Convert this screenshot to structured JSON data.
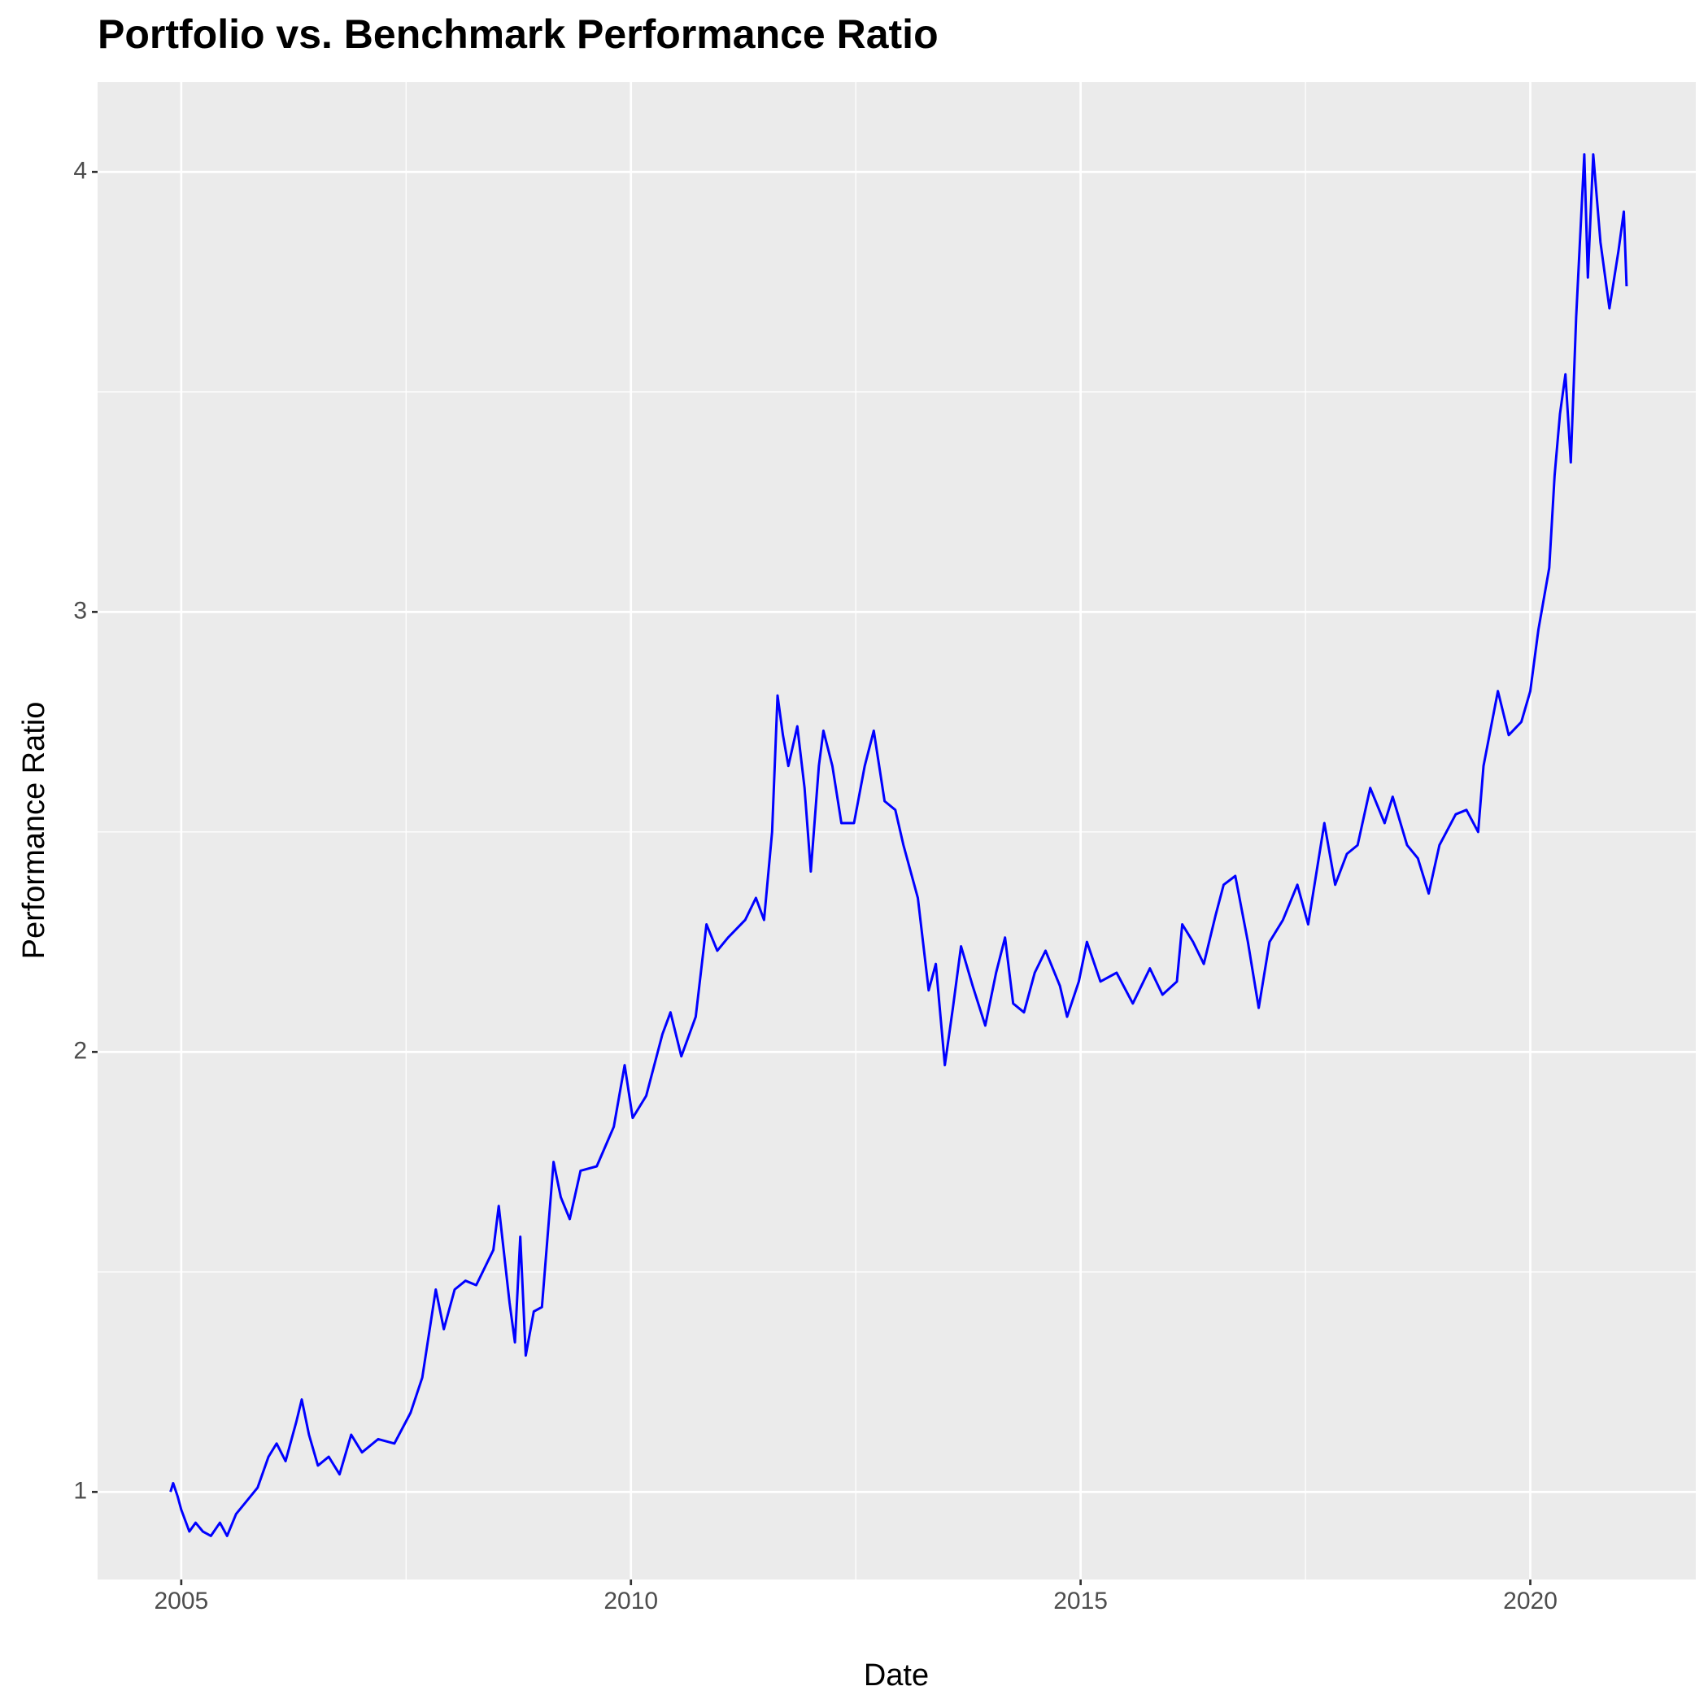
{
  "chart_data": {
    "type": "line",
    "title": "Portfolio vs. Benchmark Performance Ratio",
    "x_label": "Date",
    "y_label": "Performance Ratio",
    "xlim": [
      2004.07,
      2021.84
    ],
    "ylim": [
      0.801,
      4.204
    ],
    "xticks": [
      2005,
      2010,
      2015,
      2020
    ],
    "yticks": [
      1,
      2,
      3,
      4
    ],
    "minor_xticks": [
      2007.5,
      2012.5,
      2017.5
    ],
    "minor_yticks": [
      1.5,
      2.5,
      3.5
    ],
    "grid": true,
    "series": [
      {
        "color": "#0000ff",
        "x": [
          2004.88,
          2004.91,
          2004.96,
          2005.0,
          2005.09,
          2005.16,
          2005.24,
          2005.33,
          2005.43,
          2005.51,
          2005.61,
          2005.73,
          2005.85,
          2005.97,
          2006.06,
          2006.16,
          2006.28,
          2006.34,
          2006.42,
          2006.52,
          2006.64,
          2006.76,
          2006.89,
          2007.01,
          2007.19,
          2007.37,
          2007.55,
          2007.68,
          2007.83,
          2007.92,
          2008.04,
          2008.16,
          2008.28,
          2008.47,
          2008.53,
          2008.65,
          2008.71,
          2008.77,
          2008.83,
          2008.92,
          2009.01,
          2009.14,
          2009.22,
          2009.32,
          2009.44,
          2009.62,
          2009.81,
          2009.93,
          2010.02,
          2010.17,
          2010.35,
          2010.44,
          2010.56,
          2010.72,
          2010.84,
          2010.96,
          2011.08,
          2011.27,
          2011.39,
          2011.48,
          2011.57,
          2011.63,
          2011.69,
          2011.75,
          2011.85,
          2011.93,
          2012.0,
          2012.09,
          2012.14,
          2012.24,
          2012.34,
          2012.48,
          2012.6,
          2012.7,
          2012.82,
          2012.94,
          2013.03,
          2013.19,
          2013.31,
          2013.39,
          2013.49,
          2013.58,
          2013.67,
          2013.8,
          2013.94,
          2014.06,
          2014.16,
          2014.25,
          2014.37,
          2014.49,
          2014.61,
          2014.77,
          2014.85,
          2014.98,
          2015.07,
          2015.22,
          2015.4,
          2015.58,
          2015.77,
          2015.91,
          2016.07,
          2016.13,
          2016.25,
          2016.37,
          2016.5,
          2016.59,
          2016.72,
          2016.86,
          2016.98,
          2017.1,
          2017.25,
          2017.41,
          2017.53,
          2017.71,
          2017.83,
          2017.96,
          2018.08,
          2018.22,
          2018.38,
          2018.47,
          2018.63,
          2018.75,
          2018.87,
          2018.99,
          2019.17,
          2019.29,
          2019.42,
          2019.48,
          2019.64,
          2019.76,
          2019.9,
          2020.0,
          2020.09,
          2020.21,
          2020.27,
          2020.33,
          2020.39,
          2020.45,
          2020.51,
          2020.6,
          2020.64,
          2020.7,
          2020.78,
          2020.88,
          2020.98,
          2021.04,
          2021.07
        ],
        "values": [
          1.0,
          1.02,
          0.99,
          0.96,
          0.91,
          0.93,
          0.91,
          0.9,
          0.93,
          0.9,
          0.95,
          0.98,
          1.01,
          1.08,
          1.11,
          1.07,
          1.16,
          1.21,
          1.13,
          1.06,
          1.08,
          1.04,
          1.13,
          1.09,
          1.12,
          1.11,
          1.18,
          1.26,
          1.46,
          1.37,
          1.46,
          1.48,
          1.47,
          1.55,
          1.65,
          1.43,
          1.34,
          1.58,
          1.31,
          1.41,
          1.42,
          1.75,
          1.67,
          1.62,
          1.73,
          1.74,
          1.83,
          1.97,
          1.85,
          1.9,
          2.04,
          2.09,
          1.99,
          2.08,
          2.29,
          2.23,
          2.26,
          2.3,
          2.35,
          2.3,
          2.5,
          2.81,
          2.72,
          2.65,
          2.74,
          2.6,
          2.41,
          2.65,
          2.73,
          2.65,
          2.52,
          2.52,
          2.65,
          2.73,
          2.57,
          2.55,
          2.47,
          2.35,
          2.14,
          2.2,
          1.97,
          2.1,
          2.24,
          2.15,
          2.06,
          2.18,
          2.26,
          2.11,
          2.09,
          2.18,
          2.23,
          2.15,
          2.08,
          2.16,
          2.25,
          2.16,
          2.18,
          2.11,
          2.19,
          2.13,
          2.16,
          2.29,
          2.25,
          2.2,
          2.31,
          2.38,
          2.4,
          2.25,
          2.1,
          2.25,
          2.3,
          2.38,
          2.29,
          2.52,
          2.38,
          2.45,
          2.47,
          2.6,
          2.52,
          2.58,
          2.47,
          2.44,
          2.36,
          2.47,
          2.54,
          2.55,
          2.5,
          2.65,
          2.82,
          2.72,
          2.75,
          2.82,
          2.96,
          3.1,
          3.31,
          3.45,
          3.54,
          3.34,
          3.67,
          4.04,
          3.76,
          4.04,
          3.84,
          3.69,
          3.82,
          3.91,
          3.74
        ]
      }
    ]
  }
}
